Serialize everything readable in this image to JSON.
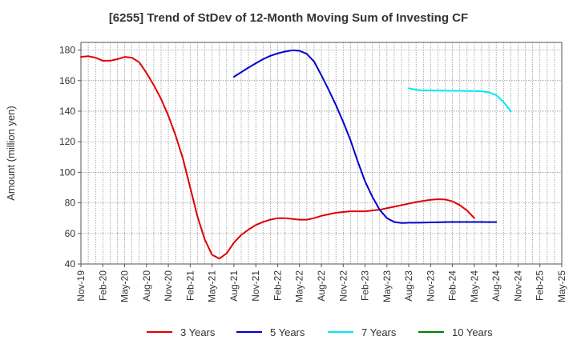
{
  "chart_data": {
    "type": "line",
    "title": "[6255]  Trend of StDev of 12-Month Moving Sum of Investing CF",
    "ylabel": "Amount (million yen)",
    "xlabel": "",
    "ylim": [
      40,
      185
    ],
    "yticks": [
      40,
      60,
      80,
      100,
      120,
      140,
      160,
      180
    ],
    "x_range": [
      "2019-11",
      "2025-05"
    ],
    "x_tick_labels": [
      "Nov-19",
      "Feb-20",
      "May-20",
      "Aug-20",
      "Nov-20",
      "Feb-21",
      "May-21",
      "Aug-21",
      "Nov-21",
      "Feb-22",
      "May-22",
      "Aug-22",
      "Nov-22",
      "Feb-23",
      "May-23",
      "Aug-23",
      "Nov-23",
      "Feb-24",
      "May-24",
      "Aug-24",
      "Nov-24",
      "Feb-25",
      "May-25"
    ],
    "grid": true,
    "legend_position": "bottom",
    "series": [
      {
        "name": "3 Years",
        "color": "#e00000",
        "start": "2019-11",
        "values": [
          175.5,
          176,
          175,
          173,
          173,
          174,
          175.5,
          175,
          172,
          165,
          157,
          148,
          137,
          124,
          109,
          90,
          71,
          56,
          46,
          43.5,
          47,
          54,
          59,
          62.5,
          65.5,
          67.5,
          69,
          70,
          70,
          69.5,
          69,
          69,
          70,
          71.5,
          72.5,
          73.5,
          74,
          74.5,
          74.5,
          74.5,
          75,
          75.5,
          76.5,
          77.5,
          78.5,
          79.5,
          80.5,
          81.3,
          82,
          82.4,
          82.2,
          81,
          78.5,
          75,
          70
        ]
      },
      {
        "name": "5 Years",
        "color": "#0000cc",
        "start": "2021-08",
        "values": [
          162.5,
          165.5,
          168.5,
          171.3,
          174,
          176.2,
          177.8,
          179,
          179.8,
          179.5,
          177.5,
          172.5,
          163.5,
          154,
          144,
          133,
          121,
          107,
          94,
          84,
          75.5,
          70,
          67.5,
          66.8,
          67,
          67,
          67.1,
          67.2,
          67.3,
          67.4,
          67.5,
          67.5,
          67.5,
          67.5,
          67.5,
          67.4,
          67.4
        ]
      },
      {
        "name": "7 Years",
        "color": "#00e8f0",
        "start": "2023-08",
        "values": [
          155,
          154,
          153.5,
          153.5,
          153.5,
          153.4,
          153.3,
          153.3,
          153.2,
          153.2,
          153,
          152.3,
          150.5,
          146,
          140
        ]
      },
      {
        "name": "10 Years",
        "color": "#008000",
        "start": "2019-11",
        "values": []
      }
    ]
  }
}
